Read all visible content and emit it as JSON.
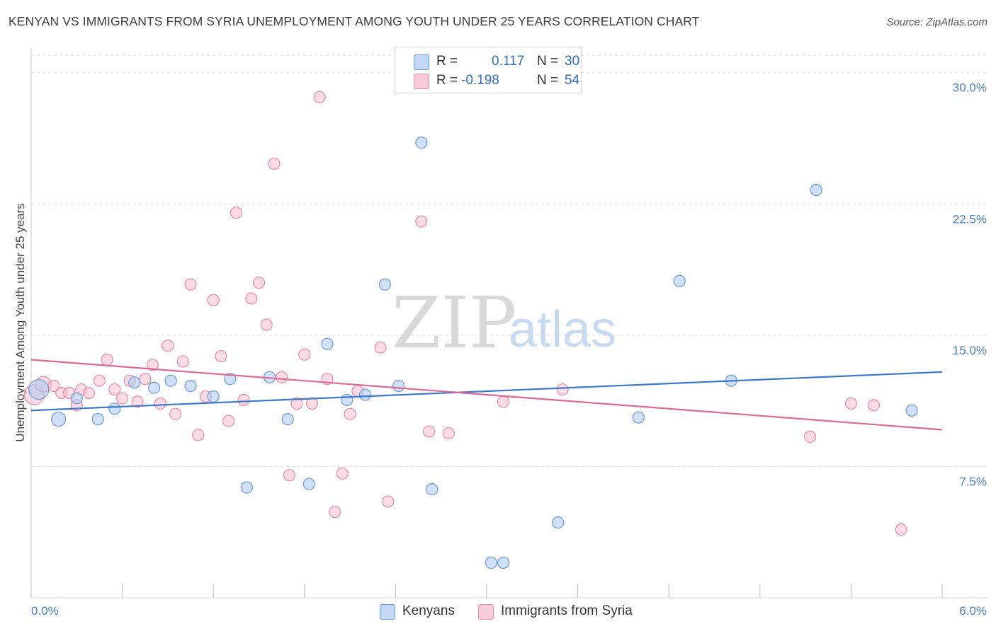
{
  "title": "KENYAN VS IMMIGRANTS FROM SYRIA UNEMPLOYMENT AMONG YOUTH UNDER 25 YEARS CORRELATION CHART",
  "source": "Source: ZipAtlas.com",
  "watermark": {
    "zip": "ZIP",
    "atlas": "atlas"
  },
  "legend": {
    "r_label": "R =",
    "n_label": "N =",
    "series": [
      {
        "name": "Kenyans",
        "r": "0.117",
        "n": "30"
      },
      {
        "name": "Immigrants from Syria",
        "r": "-0.198",
        "n": "54"
      }
    ]
  },
  "colors": {
    "kenyans_fill": "#a9c8f0",
    "kenyans_stroke": "#6a9ad8",
    "kenyans_line": "#3a78d0",
    "syria_fill": "#f7bfd0",
    "syria_stroke": "#e88aa8",
    "syria_line": "#e06894",
    "grid": "#dddddd",
    "axis_label": "#4a7fc4"
  },
  "chart_data": {
    "type": "scatter",
    "title": "KENYAN VS IMMIGRANTS FROM SYRIA UNEMPLOYMENT AMONG YOUTH UNDER 25 YEARS CORRELATION CHART",
    "xlabel": "",
    "ylabel": "Unemployment Among Youth under 25 years",
    "xlim": [
      0,
      6
    ],
    "ylim": [
      0,
      31
    ],
    "x_tick_labels": [
      "0.0%",
      "6.0%"
    ],
    "y_ticks": [
      7.5,
      15,
      22.5,
      30
    ],
    "y_tick_labels": [
      "7.5%",
      "15.0%",
      "22.5%",
      "30.0%"
    ],
    "series": [
      {
        "name": "Kenyans",
        "trend": {
          "x0": 0.0,
          "y0": 10.7,
          "x1": 6.0,
          "y1": 12.9
        },
        "points": [
          {
            "x": 0.05,
            "y": 11.9,
            "r": 14
          },
          {
            "x": 0.18,
            "y": 10.2,
            "r": 10
          },
          {
            "x": 0.3,
            "y": 11.4,
            "r": 8
          },
          {
            "x": 0.44,
            "y": 10.2,
            "r": 8
          },
          {
            "x": 0.55,
            "y": 10.8,
            "r": 8
          },
          {
            "x": 0.68,
            "y": 12.3,
            "r": 8
          },
          {
            "x": 0.81,
            "y": 12.0,
            "r": 8
          },
          {
            "x": 0.92,
            "y": 12.4,
            "r": 8
          },
          {
            "x": 1.05,
            "y": 12.1,
            "r": 8
          },
          {
            "x": 1.2,
            "y": 11.5,
            "r": 8
          },
          {
            "x": 1.31,
            "y": 12.5,
            "r": 8
          },
          {
            "x": 1.42,
            "y": 6.3,
            "r": 8
          },
          {
            "x": 1.57,
            "y": 12.6,
            "r": 8
          },
          {
            "x": 1.69,
            "y": 10.2,
            "r": 8
          },
          {
            "x": 1.83,
            "y": 6.5,
            "r": 8
          },
          {
            "x": 1.95,
            "y": 14.5,
            "r": 8
          },
          {
            "x": 2.08,
            "y": 11.3,
            "r": 8
          },
          {
            "x": 2.2,
            "y": 11.6,
            "r": 8
          },
          {
            "x": 2.33,
            "y": 17.9,
            "r": 8
          },
          {
            "x": 2.42,
            "y": 12.1,
            "r": 8
          },
          {
            "x": 2.57,
            "y": 26.0,
            "r": 8
          },
          {
            "x": 2.64,
            "y": 6.2,
            "r": 8
          },
          {
            "x": 3.03,
            "y": 2.0,
            "r": 8
          },
          {
            "x": 3.11,
            "y": 2.0,
            "r": 8
          },
          {
            "x": 3.47,
            "y": 4.3,
            "r": 8
          },
          {
            "x": 4.0,
            "y": 10.3,
            "r": 8
          },
          {
            "x": 4.27,
            "y": 18.1,
            "r": 8
          },
          {
            "x": 4.61,
            "y": 12.4,
            "r": 8
          },
          {
            "x": 5.17,
            "y": 23.3,
            "r": 8
          },
          {
            "x": 5.8,
            "y": 10.7,
            "r": 8
          }
        ]
      },
      {
        "name": "Immigrants from Syria",
        "trend": {
          "x0": 0.0,
          "y0": 13.6,
          "x1": 6.0,
          "y1": 9.6
        },
        "points": [
          {
            "x": 0.02,
            "y": 11.6,
            "r": 14
          },
          {
            "x": 0.08,
            "y": 12.2,
            "r": 11
          },
          {
            "x": 0.15,
            "y": 12.1,
            "r": 8
          },
          {
            "x": 0.2,
            "y": 11.7,
            "r": 8
          },
          {
            "x": 0.25,
            "y": 11.7,
            "r": 8
          },
          {
            "x": 0.3,
            "y": 11.0,
            "r": 8
          },
          {
            "x": 0.33,
            "y": 11.9,
            "r": 8
          },
          {
            "x": 0.38,
            "y": 11.7,
            "r": 8
          },
          {
            "x": 0.45,
            "y": 12.4,
            "r": 8
          },
          {
            "x": 0.5,
            "y": 13.6,
            "r": 8
          },
          {
            "x": 0.55,
            "y": 11.9,
            "r": 8
          },
          {
            "x": 0.6,
            "y": 11.4,
            "r": 8
          },
          {
            "x": 0.65,
            "y": 12.4,
            "r": 8
          },
          {
            "x": 0.7,
            "y": 11.2,
            "r": 8
          },
          {
            "x": 0.75,
            "y": 12.5,
            "r": 8
          },
          {
            "x": 0.8,
            "y": 13.3,
            "r": 8
          },
          {
            "x": 0.85,
            "y": 11.1,
            "r": 8
          },
          {
            "x": 0.9,
            "y": 14.4,
            "r": 8
          },
          {
            "x": 0.95,
            "y": 10.5,
            "r": 8
          },
          {
            "x": 1.0,
            "y": 13.5,
            "r": 8
          },
          {
            "x": 1.05,
            "y": 17.9,
            "r": 8
          },
          {
            "x": 1.1,
            "y": 9.3,
            "r": 8
          },
          {
            "x": 1.15,
            "y": 11.5,
            "r": 8
          },
          {
            "x": 1.2,
            "y": 17.0,
            "r": 8
          },
          {
            "x": 1.25,
            "y": 13.8,
            "r": 8
          },
          {
            "x": 1.3,
            "y": 10.1,
            "r": 8
          },
          {
            "x": 1.35,
            "y": 22.0,
            "r": 8
          },
          {
            "x": 1.4,
            "y": 11.3,
            "r": 8
          },
          {
            "x": 1.45,
            "y": 17.1,
            "r": 8
          },
          {
            "x": 1.5,
            "y": 18.0,
            "r": 8
          },
          {
            "x": 1.55,
            "y": 15.6,
            "r": 8
          },
          {
            "x": 1.6,
            "y": 24.8,
            "r": 8
          },
          {
            "x": 1.65,
            "y": 12.6,
            "r": 8
          },
          {
            "x": 1.7,
            "y": 7.0,
            "r": 8
          },
          {
            "x": 1.75,
            "y": 11.1,
            "r": 8
          },
          {
            "x": 1.8,
            "y": 13.9,
            "r": 8
          },
          {
            "x": 1.85,
            "y": 11.1,
            "r": 8
          },
          {
            "x": 1.9,
            "y": 28.6,
            "r": 8
          },
          {
            "x": 1.95,
            "y": 12.5,
            "r": 8
          },
          {
            "x": 2.0,
            "y": 4.9,
            "r": 8
          },
          {
            "x": 2.05,
            "y": 7.1,
            "r": 8
          },
          {
            "x": 2.1,
            "y": 10.5,
            "r": 8
          },
          {
            "x": 2.15,
            "y": 11.8,
            "r": 8
          },
          {
            "x": 2.3,
            "y": 14.3,
            "r": 8
          },
          {
            "x": 2.35,
            "y": 5.5,
            "r": 8
          },
          {
            "x": 2.57,
            "y": 21.5,
            "r": 8
          },
          {
            "x": 2.62,
            "y": 9.5,
            "r": 8
          },
          {
            "x": 2.75,
            "y": 9.4,
            "r": 8
          },
          {
            "x": 3.11,
            "y": 11.2,
            "r": 8
          },
          {
            "x": 3.5,
            "y": 11.9,
            "r": 8
          },
          {
            "x": 5.13,
            "y": 9.2,
            "r": 8
          },
          {
            "x": 5.4,
            "y": 11.1,
            "r": 8
          },
          {
            "x": 5.55,
            "y": 11.0,
            "r": 8
          },
          {
            "x": 5.73,
            "y": 3.9,
            "r": 8
          }
        ]
      }
    ]
  }
}
